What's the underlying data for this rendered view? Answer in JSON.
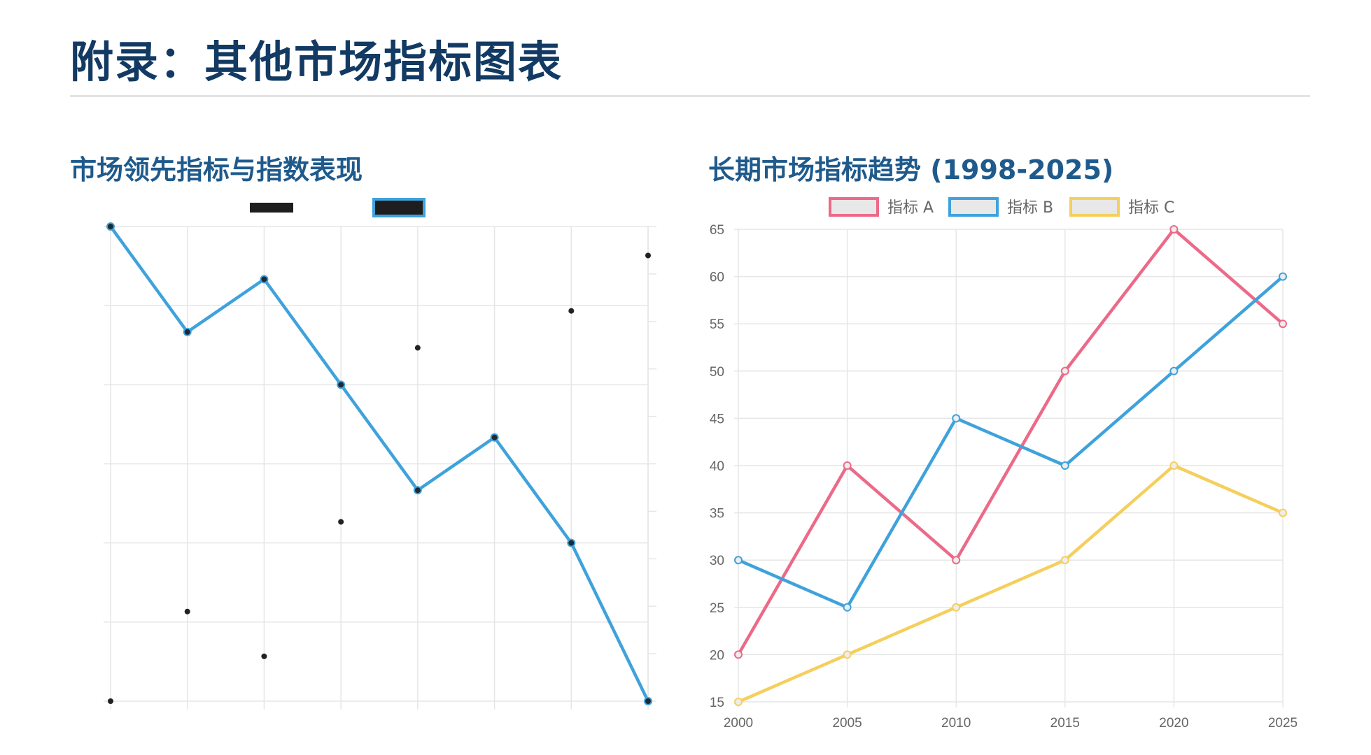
{
  "page": {
    "title": "附录：其他市场指标图表"
  },
  "chart_data": [
    {
      "type": "line",
      "title": "市场领先指标与指数表现",
      "x": [
        0,
        1,
        2,
        3,
        4,
        5,
        6,
        7
      ],
      "grid": true,
      "legend_position": "top-center",
      "series": [
        {
          "role": "line",
          "color": "#3fa2dc",
          "values": [
            100,
            80,
            90,
            70,
            50,
            60,
            40,
            10
          ]
        },
        {
          "role": "scatter",
          "color": "#222222",
          "values": [
            10,
            27,
            18.5,
            44,
            77,
            null,
            84,
            94.5
          ]
        }
      ],
      "ylim": [
        10,
        100
      ]
    },
    {
      "type": "line",
      "title": "长期市场指标趋势 (1998-2025)",
      "x": [
        2000,
        2005,
        2010,
        2015,
        2020,
        2025
      ],
      "xlabel": "",
      "ylabel": "",
      "ylim": [
        15,
        65
      ],
      "yticks": [
        15,
        20,
        25,
        30,
        35,
        40,
        45,
        50,
        55,
        60,
        65
      ],
      "grid": true,
      "legend_position": "top-center",
      "series": [
        {
          "name": "指标 A",
          "color": "#ec6a88",
          "values": [
            20,
            40,
            30,
            50,
            65,
            55
          ]
        },
        {
          "name": "指标 B",
          "color": "#3fa2dc",
          "values": [
            30,
            25,
            45,
            40,
            50,
            60
          ]
        },
        {
          "name": "指标 C",
          "color": "#f5cf5c",
          "values": [
            15,
            20,
            25,
            30,
            40,
            35
          ]
        }
      ]
    }
  ]
}
